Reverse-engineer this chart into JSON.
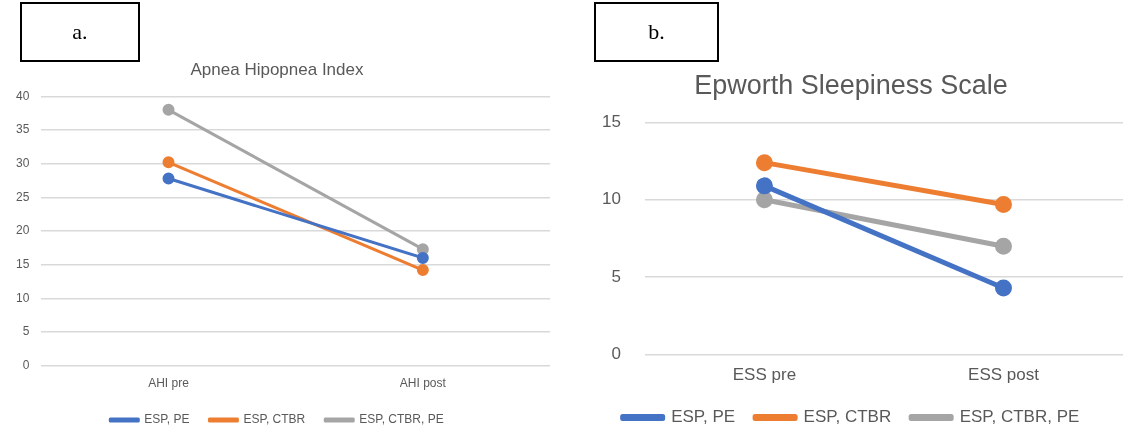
{
  "chart_data": [
    {
      "type": "line",
      "title": "Apnea Hipopnea Index",
      "annotations": [
        "a."
      ],
      "categories": [
        "AHI pre",
        "AHI post"
      ],
      "series": [
        {
          "name": "ESP, PE",
          "color": "#4472c4",
          "values": [
            27.8,
            16
          ]
        },
        {
          "name": "ESP, CTBR",
          "color": "#ed7d31",
          "values": [
            30.2,
            14.2
          ]
        },
        {
          "name": "ESP, CTBR, PE",
          "color": "#a5a5a5",
          "values": [
            38,
            17.3
          ]
        }
      ],
      "ylim": [
        0,
        40
      ],
      "yticks": [
        0,
        5,
        10,
        15,
        20,
        25,
        30,
        35,
        40
      ],
      "grid": "y",
      "legend": "bottom",
      "marker": "circle",
      "line_style": "solid"
    },
    {
      "type": "line",
      "title": "Epworth Sleepiness Scale",
      "annotations": [
        "b."
      ],
      "categories": [
        "ESS pre",
        "ESS post"
      ],
      "series": [
        {
          "name": "ESP, PE",
          "color": "#4472c4",
          "values": [
            10.9,
            4.3
          ]
        },
        {
          "name": "ESP, CTBR",
          "color": "#ed7d31",
          "values": [
            12.4,
            9.7
          ]
        },
        {
          "name": "ESP, CTBR, PE",
          "color": "#a5a5a5",
          "values": [
            10,
            7
          ]
        }
      ],
      "ylim": [
        0,
        15
      ],
      "yticks": [
        0,
        5,
        10,
        15
      ],
      "grid": "y",
      "legend": "bottom",
      "marker": "circle",
      "line_style": "solid"
    }
  ]
}
